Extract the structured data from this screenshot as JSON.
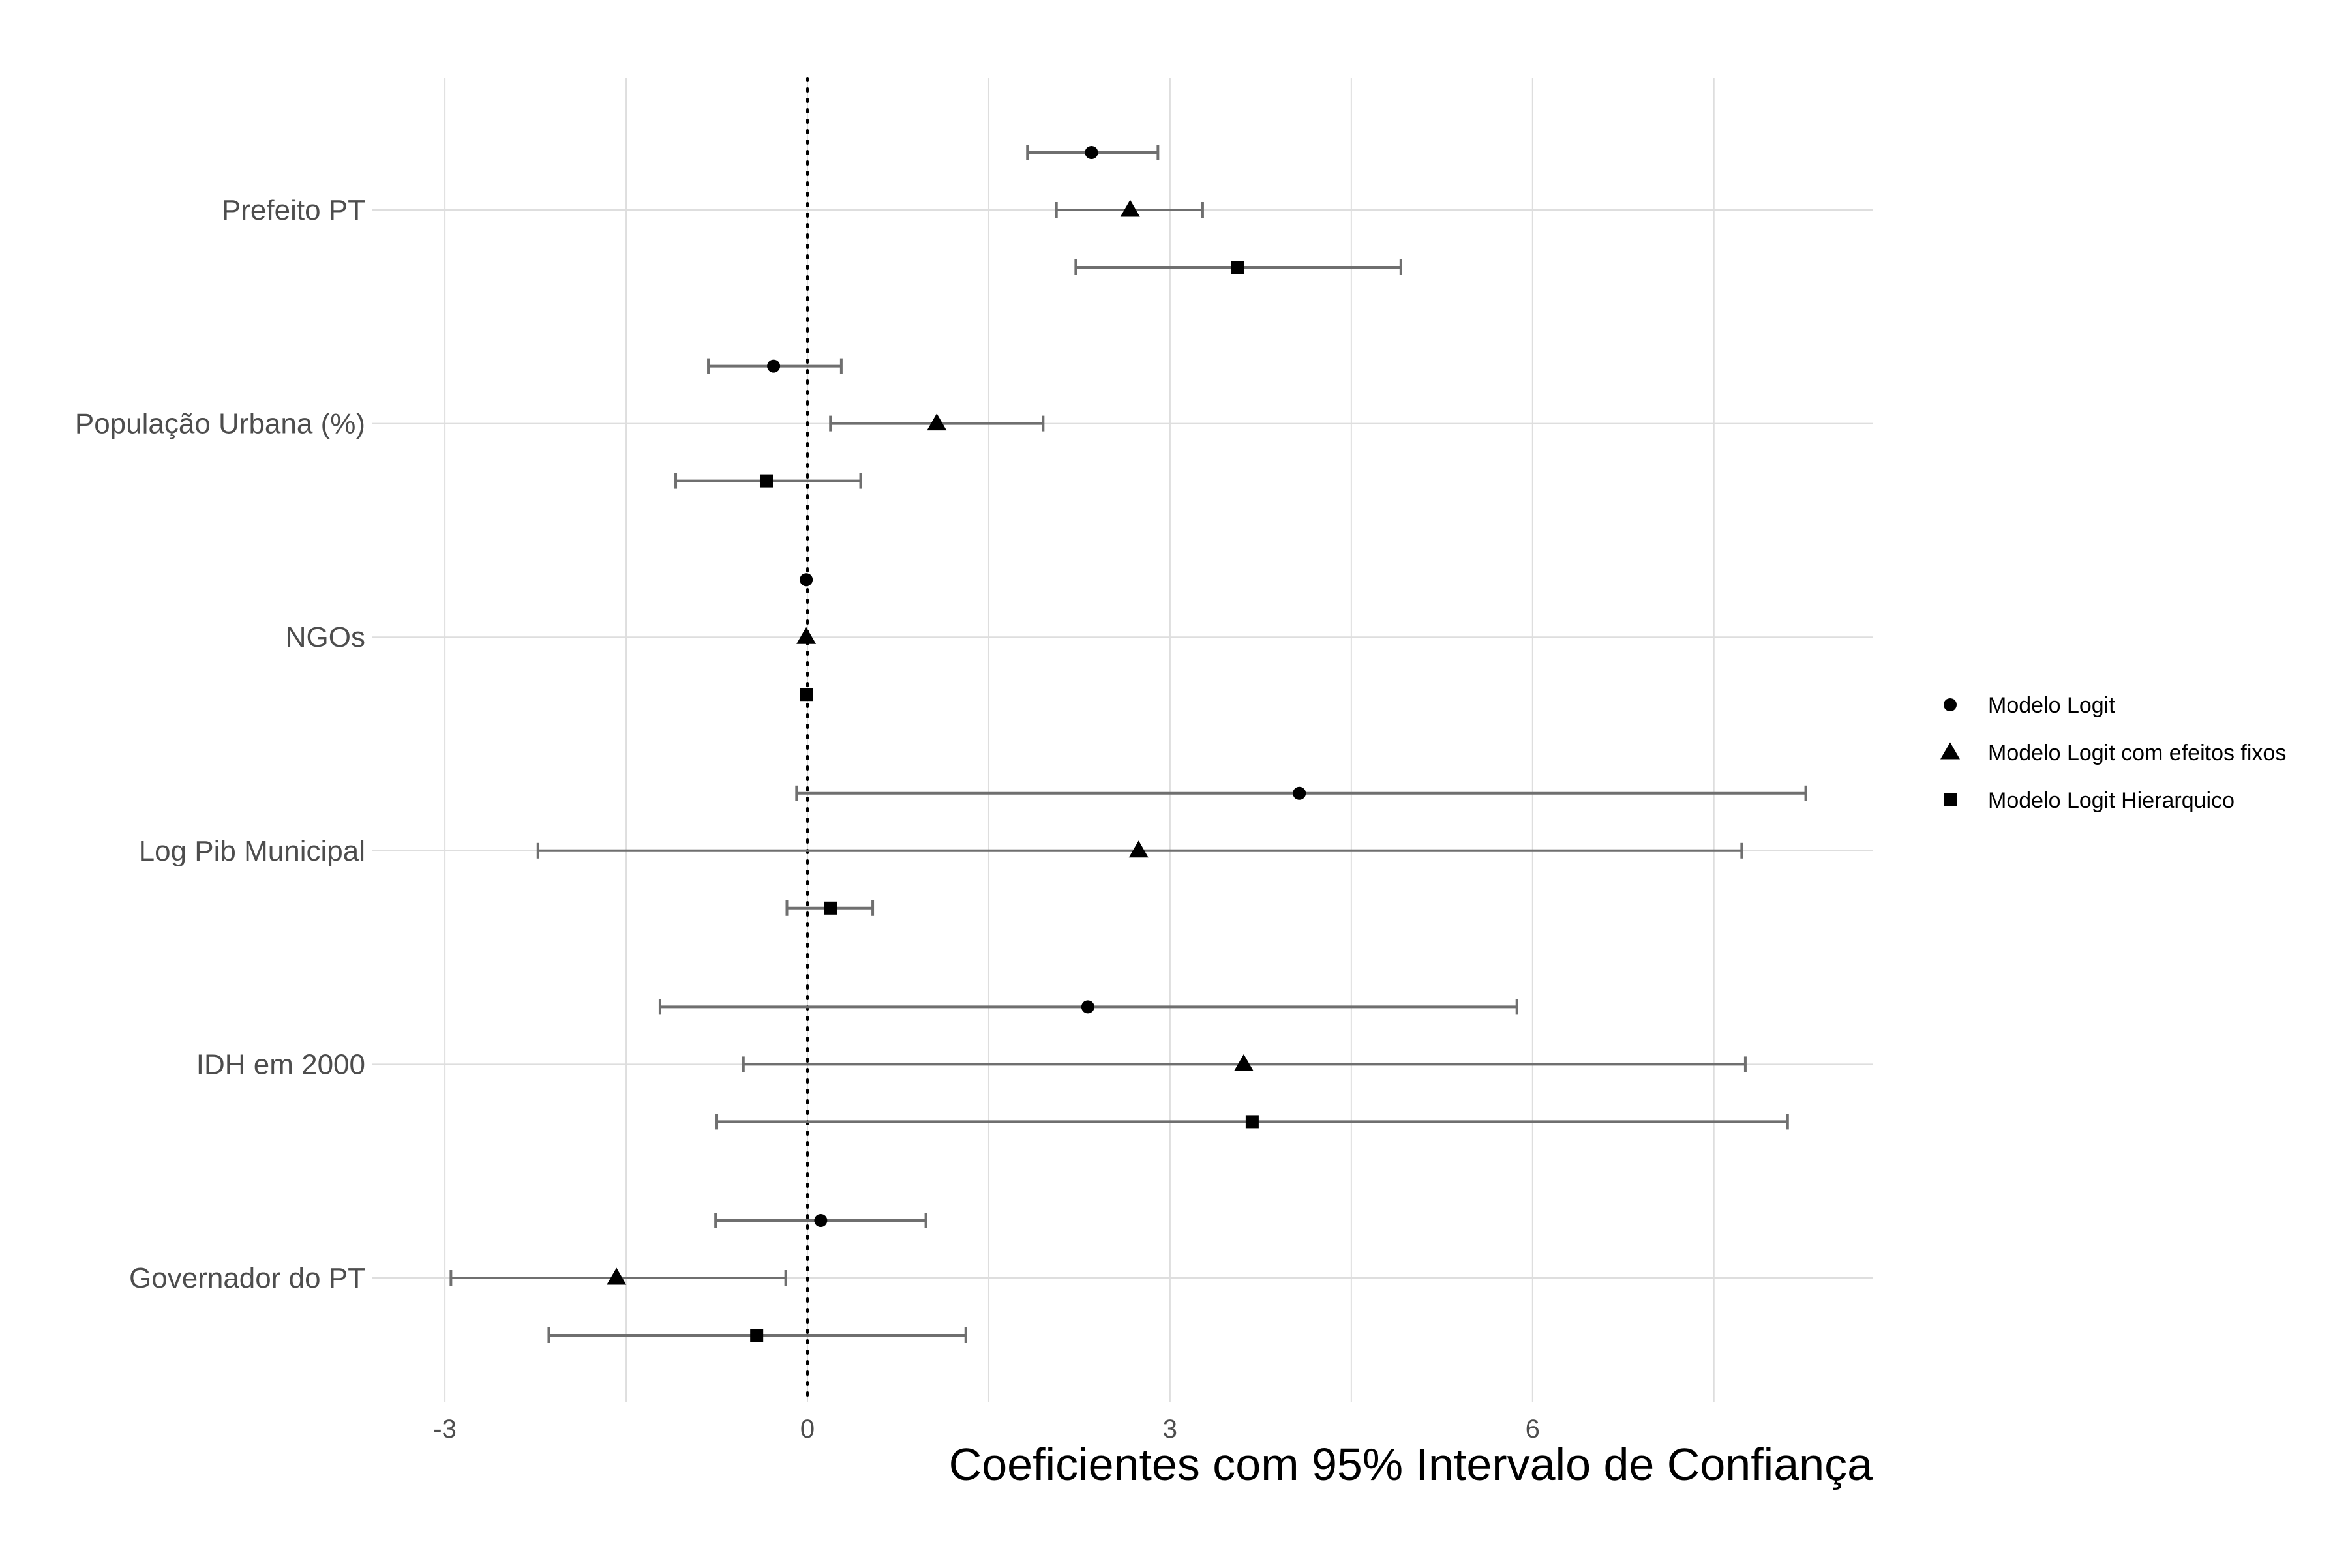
{
  "chart_data": {
    "type": "scatter",
    "subtype": "coefficient-plot-with-95-ci",
    "title": "",
    "xlabel": "Coeficientes com 95% Intervalo de Confiança",
    "ylabel": "",
    "xlim": [
      -3,
      8.85
    ],
    "x_ticks": [
      -3,
      0,
      3,
      6
    ],
    "x_tick_labels": [
      "-3",
      "0",
      "3",
      "6"
    ],
    "x_minor_grid": [
      -1.5,
      1.5,
      4.5,
      7.5
    ],
    "reference_line": {
      "x": 0,
      "style": "dotted"
    },
    "grid": true,
    "legend_position": "right",
    "categories": [
      "Prefeito PT",
      "População Urbana (%)",
      "NGOs",
      "Log Pib Municipal",
      "IDH em 2000",
      "Governador do PT"
    ],
    "series": [
      {
        "name": "Modelo Logit",
        "marker": "circle",
        "estimate": [
          2.35,
          -0.28,
          -0.01,
          4.07,
          2.32,
          0.11
        ],
        "lower": [
          1.82,
          -0.82,
          -0.01,
          -0.09,
          -1.22,
          -0.76
        ],
        "upper": [
          2.9,
          0.28,
          -0.01,
          8.26,
          5.87,
          0.98
        ]
      },
      {
        "name": "Modelo Logit  com efeitos fixos",
        "marker": "triangle",
        "estimate": [
          2.67,
          1.07,
          -0.01,
          2.74,
          3.61,
          -1.58
        ],
        "lower": [
          2.06,
          0.19,
          -0.01,
          -2.23,
          -0.53,
          -2.95
        ],
        "upper": [
          3.27,
          1.95,
          -0.01,
          7.73,
          7.76,
          -0.18
        ]
      },
      {
        "name": "Modelo Logit Hierarquico",
        "marker": "square",
        "estimate": [
          3.56,
          -0.34,
          -0.01,
          0.19,
          3.68,
          -0.42
        ],
        "lower": [
          2.22,
          -1.09,
          -0.01,
          -0.17,
          -0.75,
          -2.14
        ],
        "upper": [
          4.91,
          0.44,
          -0.01,
          0.54,
          8.11,
          1.31
        ]
      }
    ]
  }
}
